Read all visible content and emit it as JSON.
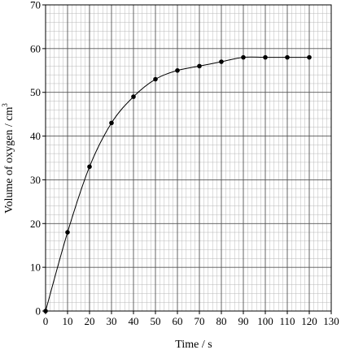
{
  "chart_data": {
    "type": "scatter",
    "title": "",
    "xlabel": "Time / s",
    "ylabel_main": "Volume of oxygen / cm",
    "ylabel_sup": "3",
    "xlim": [
      0,
      130
    ],
    "ylim": [
      0,
      70
    ],
    "x_ticks": [
      0,
      10,
      20,
      30,
      40,
      50,
      60,
      70,
      80,
      90,
      100,
      110,
      120,
      130
    ],
    "y_ticks": [
      0,
      10,
      20,
      30,
      40,
      50,
      60,
      70
    ],
    "grid": true,
    "minor_grid_step_x": 2,
    "minor_grid_step_y": 2,
    "trend_curve": "smooth",
    "series": [
      {
        "x": [
          0,
          10,
          20,
          30,
          40,
          50,
          60,
          70,
          80,
          90,
          100,
          110,
          120
        ],
        "y": [
          0,
          18,
          33,
          43,
          49,
          53,
          55,
          56,
          57,
          58,
          58,
          58,
          58
        ]
      }
    ],
    "colors": {
      "grid_minor": "#b8b8b8",
      "grid_major": "#555555",
      "axis": "#000000",
      "points": "#000000",
      "curve": "#000000"
    }
  }
}
